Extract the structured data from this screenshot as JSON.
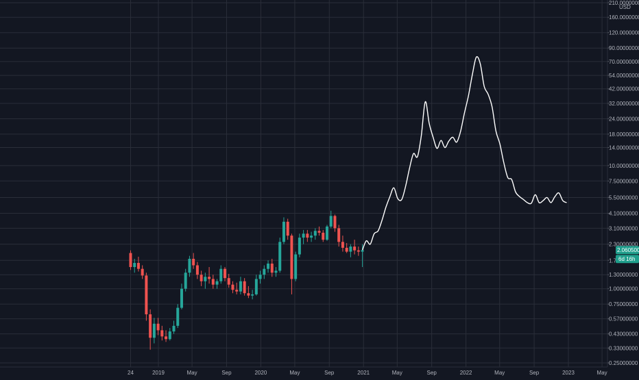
{
  "chart_data": {
    "type": "candlestick+line",
    "y_scale": "log",
    "y_unit_label": "USD",
    "ylim": [
      0.25,
      210
    ],
    "y_ticks": [
      "210.00000000",
      "160.00000000",
      "120.00000000",
      "90.00000000",
      "70.00000000",
      "54.00000000",
      "42.00000000",
      "32.00000000",
      "24.00000000",
      "18.00000000",
      "14.00000000",
      "10.00000000",
      "7.50000000",
      "5.50000000",
      "4.10000000",
      "3.10000000",
      "2.30000000",
      "1.70000000",
      "1.30000000",
      "1.00000000",
      "0.75000000",
      "0.57000000",
      "0.43000000",
      "0.33000000",
      "0.25000000"
    ],
    "y_tick_values": [
      210,
      160,
      120,
      90,
      70,
      54,
      42,
      32,
      24,
      18,
      14,
      10,
      7.5,
      5.5,
      4.1,
      3.1,
      2.3,
      1.7,
      1.3,
      1.0,
      0.75,
      0.57,
      0.43,
      0.33,
      0.25
    ],
    "x_ticks": [
      "24",
      "2019",
      "May",
      "Sep",
      "2020",
      "May",
      "Sep",
      "2021",
      "May",
      "Sep",
      "2022",
      "May",
      "Sep",
      "2023",
      "May"
    ],
    "x_tick_dates": [
      "2018-09-24",
      "2019-01-01",
      "2019-05-01",
      "2019-09-01",
      "2020-01-01",
      "2020-05-01",
      "2020-09-01",
      "2021-01-01",
      "2021-05-01",
      "2021-09-01",
      "2022-01-01",
      "2022-05-01",
      "2022-09-01",
      "2023-01-01",
      "2023-05-01"
    ],
    "grid": true,
    "colors": {
      "background": "#131722",
      "grid": "#2a2e39",
      "up": "#26a69a",
      "down": "#ef5350",
      "projection": "#ffffff",
      "badge": "#1f9e8c"
    },
    "last_price_label": "2.06050000",
    "countdown_label": "6d 16h",
    "candles": [
      {
        "date": "2018-09-24",
        "open": 1.95,
        "high": 2.05,
        "low": 1.42,
        "close": 1.5
      },
      {
        "date": "2018-10-08",
        "open": 1.5,
        "high": 1.75,
        "low": 1.35,
        "close": 1.62
      },
      {
        "date": "2018-10-22",
        "open": 1.62,
        "high": 1.82,
        "low": 1.38,
        "close": 1.45
      },
      {
        "date": "2018-11-05",
        "open": 1.45,
        "high": 1.55,
        "low": 1.2,
        "close": 1.28
      },
      {
        "date": "2018-11-19",
        "open": 1.28,
        "high": 1.35,
        "low": 0.55,
        "close": 0.62
      },
      {
        "date": "2018-12-03",
        "open": 0.62,
        "high": 0.68,
        "low": 0.32,
        "close": 0.4
      },
      {
        "date": "2018-12-17",
        "open": 0.4,
        "high": 0.58,
        "low": 0.36,
        "close": 0.52
      },
      {
        "date": "2018-12-31",
        "open": 0.52,
        "high": 0.58,
        "low": 0.42,
        "close": 0.46
      },
      {
        "date": "2019-01-14",
        "open": 0.46,
        "high": 0.5,
        "low": 0.38,
        "close": 0.41
      },
      {
        "date": "2019-01-28",
        "open": 0.41,
        "high": 0.46,
        "low": 0.37,
        "close": 0.39
      },
      {
        "date": "2019-02-11",
        "open": 0.39,
        "high": 0.48,
        "low": 0.38,
        "close": 0.45
      },
      {
        "date": "2019-02-25",
        "open": 0.45,
        "high": 0.55,
        "low": 0.43,
        "close": 0.5
      },
      {
        "date": "2019-03-11",
        "open": 0.5,
        "high": 0.75,
        "low": 0.48,
        "close": 0.7
      },
      {
        "date": "2019-03-25",
        "open": 0.7,
        "high": 1.1,
        "low": 0.68,
        "close": 1.0
      },
      {
        "date": "2019-04-08",
        "open": 1.0,
        "high": 1.45,
        "low": 0.95,
        "close": 1.35
      },
      {
        "date": "2019-04-22",
        "open": 1.35,
        "high": 1.85,
        "low": 1.25,
        "close": 1.75
      },
      {
        "date": "2019-05-06",
        "open": 1.75,
        "high": 1.95,
        "low": 1.45,
        "close": 1.55
      },
      {
        "date": "2019-05-20",
        "open": 1.55,
        "high": 1.65,
        "low": 1.2,
        "close": 1.3
      },
      {
        "date": "2019-06-03",
        "open": 1.3,
        "high": 1.4,
        "low": 1.05,
        "close": 1.15
      },
      {
        "date": "2019-06-17",
        "open": 1.15,
        "high": 1.35,
        "low": 1.0,
        "close": 1.25
      },
      {
        "date": "2019-07-01",
        "open": 1.25,
        "high": 1.5,
        "low": 1.1,
        "close": 1.2
      },
      {
        "date": "2019-07-15",
        "open": 1.2,
        "high": 1.3,
        "low": 1.0,
        "close": 1.08
      },
      {
        "date": "2019-07-29",
        "open": 1.08,
        "high": 1.2,
        "low": 1.0,
        "close": 1.15
      },
      {
        "date": "2019-08-12",
        "open": 1.15,
        "high": 1.55,
        "low": 1.1,
        "close": 1.45
      },
      {
        "date": "2019-08-26",
        "open": 1.45,
        "high": 1.5,
        "low": 1.15,
        "close": 1.22
      },
      {
        "date": "2019-09-09",
        "open": 1.22,
        "high": 1.32,
        "low": 1.02,
        "close": 1.08
      },
      {
        "date": "2019-09-23",
        "open": 1.08,
        "high": 1.15,
        "low": 0.92,
        "close": 0.98
      },
      {
        "date": "2019-10-07",
        "open": 0.98,
        "high": 1.12,
        "low": 0.9,
        "close": 0.95
      },
      {
        "date": "2019-10-21",
        "open": 0.95,
        "high": 1.25,
        "low": 0.9,
        "close": 1.15
      },
      {
        "date": "2019-11-04",
        "open": 1.15,
        "high": 1.22,
        "low": 0.88,
        "close": 0.92
      },
      {
        "date": "2019-11-18",
        "open": 0.92,
        "high": 1.05,
        "low": 0.84,
        "close": 0.88
      },
      {
        "date": "2019-12-02",
        "open": 0.88,
        "high": 0.98,
        "low": 0.82,
        "close": 0.9
      },
      {
        "date": "2019-12-16",
        "open": 0.9,
        "high": 1.3,
        "low": 0.88,
        "close": 1.2
      },
      {
        "date": "2019-12-30",
        "open": 1.2,
        "high": 1.4,
        "low": 1.1,
        "close": 1.3
      },
      {
        "date": "2020-01-13",
        "open": 1.3,
        "high": 1.55,
        "low": 1.2,
        "close": 1.45
      },
      {
        "date": "2020-01-27",
        "open": 1.45,
        "high": 1.7,
        "low": 1.35,
        "close": 1.6
      },
      {
        "date": "2020-02-10",
        "open": 1.6,
        "high": 1.75,
        "low": 1.25,
        "close": 1.35
      },
      {
        "date": "2020-02-24",
        "open": 1.35,
        "high": 1.5,
        "low": 1.25,
        "close": 1.4
      },
      {
        "date": "2020-03-09",
        "open": 1.4,
        "high": 2.6,
        "low": 1.35,
        "close": 2.4
      },
      {
        "date": "2020-03-23",
        "open": 2.4,
        "high": 3.8,
        "low": 2.3,
        "close": 3.5
      },
      {
        "date": "2020-04-06",
        "open": 3.5,
        "high": 3.7,
        "low": 2.5,
        "close": 2.7
      },
      {
        "date": "2020-04-20",
        "open": 2.7,
        "high": 2.8,
        "low": 0.9,
        "close": 1.2
      },
      {
        "date": "2020-05-04",
        "open": 1.2,
        "high": 2.0,
        "low": 1.15,
        "close": 1.9
      },
      {
        "date": "2020-05-18",
        "open": 1.9,
        "high": 2.8,
        "low": 1.8,
        "close": 2.6
      },
      {
        "date": "2020-06-01",
        "open": 2.6,
        "high": 3.0,
        "low": 2.3,
        "close": 2.8
      },
      {
        "date": "2020-06-15",
        "open": 2.8,
        "high": 3.0,
        "low": 2.4,
        "close": 2.6
      },
      {
        "date": "2020-06-29",
        "open": 2.6,
        "high": 2.9,
        "low": 2.4,
        "close": 2.7
      },
      {
        "date": "2020-07-13",
        "open": 2.7,
        "high": 3.1,
        "low": 2.5,
        "close": 2.95
      },
      {
        "date": "2020-07-27",
        "open": 2.95,
        "high": 3.2,
        "low": 2.7,
        "close": 2.85
      },
      {
        "date": "2020-08-10",
        "open": 2.85,
        "high": 3.0,
        "low": 2.4,
        "close": 2.5
      },
      {
        "date": "2020-08-24",
        "open": 2.5,
        "high": 3.3,
        "low": 2.45,
        "close": 3.2
      },
      {
        "date": "2020-09-07",
        "open": 3.2,
        "high": 4.3,
        "low": 3.1,
        "close": 3.9
      },
      {
        "date": "2020-09-21",
        "open": 3.9,
        "high": 4.0,
        "low": 2.9,
        "close": 3.1
      },
      {
        "date": "2020-10-05",
        "open": 3.1,
        "high": 3.3,
        "low": 2.2,
        "close": 2.4
      },
      {
        "date": "2020-10-19",
        "open": 2.4,
        "high": 2.7,
        "low": 2.0,
        "close": 2.15
      },
      {
        "date": "2020-11-02",
        "open": 2.15,
        "high": 2.35,
        "low": 1.95,
        "close": 2.0
      },
      {
        "date": "2020-11-16",
        "open": 2.0,
        "high": 2.3,
        "low": 1.8,
        "close": 2.2
      },
      {
        "date": "2020-11-30",
        "open": 2.2,
        "high": 2.5,
        "low": 1.9,
        "close": 2.05
      },
      {
        "date": "2020-12-14",
        "open": 2.05,
        "high": 2.2,
        "low": 1.85,
        "close": 2.0
      },
      {
        "date": "2020-12-28",
        "open": 2.0,
        "high": 2.3,
        "low": 1.5,
        "close": 2.06
      }
    ],
    "projection_line": [
      {
        "date": "2020-12-28",
        "value": 2.06
      },
      {
        "date": "2021-01-11",
        "value": 2.45
      },
      {
        "date": "2021-01-25",
        "value": 2.3
      },
      {
        "date": "2021-02-08",
        "value": 2.8
      },
      {
        "date": "2021-02-22",
        "value": 2.95
      },
      {
        "date": "2021-03-08",
        "value": 3.6
      },
      {
        "date": "2021-03-22",
        "value": 4.6
      },
      {
        "date": "2021-04-05",
        "value": 5.6
      },
      {
        "date": "2021-04-19",
        "value": 6.6
      },
      {
        "date": "2021-05-03",
        "value": 5.4
      },
      {
        "date": "2021-05-17",
        "value": 5.3
      },
      {
        "date": "2021-05-31",
        "value": 6.8
      },
      {
        "date": "2021-06-14",
        "value": 9.5
      },
      {
        "date": "2021-06-28",
        "value": 12.5
      },
      {
        "date": "2021-07-12",
        "value": 11.8
      },
      {
        "date": "2021-07-26",
        "value": 17.5
      },
      {
        "date": "2021-08-09",
        "value": 33
      },
      {
        "date": "2021-08-23",
        "value": 22
      },
      {
        "date": "2021-09-06",
        "value": 17
      },
      {
        "date": "2021-09-20",
        "value": 13.8
      },
      {
        "date": "2021-10-04",
        "value": 16
      },
      {
        "date": "2021-10-18",
        "value": 14
      },
      {
        "date": "2021-11-01",
        "value": 15.8
      },
      {
        "date": "2021-11-15",
        "value": 17
      },
      {
        "date": "2021-11-29",
        "value": 15.5
      },
      {
        "date": "2021-12-13",
        "value": 19
      },
      {
        "date": "2021-12-27",
        "value": 27
      },
      {
        "date": "2022-01-10",
        "value": 37
      },
      {
        "date": "2022-01-24",
        "value": 55
      },
      {
        "date": "2022-02-07",
        "value": 76
      },
      {
        "date": "2022-02-21",
        "value": 67
      },
      {
        "date": "2022-03-07",
        "value": 44
      },
      {
        "date": "2022-03-21",
        "value": 38
      },
      {
        "date": "2022-04-04",
        "value": 30
      },
      {
        "date": "2022-04-18",
        "value": 19
      },
      {
        "date": "2022-05-02",
        "value": 15
      },
      {
        "date": "2022-05-16",
        "value": 10.5
      },
      {
        "date": "2022-05-30",
        "value": 8
      },
      {
        "date": "2022-06-13",
        "value": 7.7
      },
      {
        "date": "2022-06-27",
        "value": 6.1
      },
      {
        "date": "2022-07-11",
        "value": 5.6
      },
      {
        "date": "2022-07-25",
        "value": 5.3
      },
      {
        "date": "2022-08-08",
        "value": 5.0
      },
      {
        "date": "2022-08-22",
        "value": 4.95
      },
      {
        "date": "2022-09-05",
        "value": 5.8
      },
      {
        "date": "2022-09-19",
        "value": 5.0
      },
      {
        "date": "2022-10-03",
        "value": 5.2
      },
      {
        "date": "2022-10-17",
        "value": 5.5
      },
      {
        "date": "2022-10-31",
        "value": 5.0
      },
      {
        "date": "2022-11-14",
        "value": 5.6
      },
      {
        "date": "2022-11-28",
        "value": 6.0
      },
      {
        "date": "2022-12-12",
        "value": 5.2
      },
      {
        "date": "2022-12-26",
        "value": 5.0
      }
    ]
  }
}
